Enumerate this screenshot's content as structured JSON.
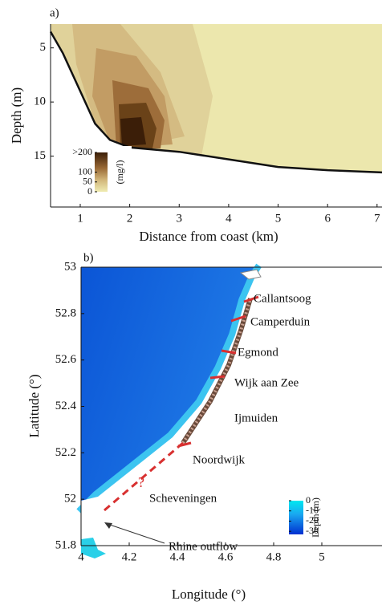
{
  "chart_data": [
    {
      "type": "contour",
      "panel_label": "a)",
      "xlabel": "Distance from coast (km)",
      "ylabel": "Depth (m)",
      "xlim": [
        0.4,
        7.1
      ],
      "xticks": [
        1,
        2,
        3,
        4,
        5,
        6,
        7
      ],
      "ylim": [
        2.8,
        19.7
      ],
      "yticks": [
        5,
        10,
        15
      ],
      "y_inverted": true,
      "series": [
        {
          "color": "#111111",
          "x": [
            0.4,
            0.65,
            1.0,
            1.3,
            1.6,
            2.0,
            3.0,
            4.0,
            5.0,
            6.0,
            7.1
          ],
          "values": [
            3.5,
            5.5,
            9,
            12,
            13.5,
            14.2,
            14.6,
            15.3,
            16,
            16.3,
            16.5
          ]
        }
      ],
      "colorbar": {
        "label": "(mg/l)",
        "clim": [
          0,
          200
        ],
        "ticks": [
          {
            "value": 200,
            "label": ">200"
          },
          100,
          50,
          0
        ]
      }
    },
    {
      "type": "map",
      "panel_label": "b)",
      "xlabel": "Longitude (°)",
      "ylabel": "Latitude (°)",
      "xlim": [
        4,
        5.25
      ],
      "xticks": [
        4,
        4.2,
        4.4,
        4.6,
        4.8,
        5
      ],
      "ylim": [
        51.8,
        53
      ],
      "yticks": [
        51.8,
        52,
        52.2,
        52.4,
        52.6,
        52.8,
        53
      ],
      "annotations": [
        "Callantsoog",
        "Camperduin",
        "Egmond",
        "Wijk aan Zee",
        "Ijmuiden",
        "Noordwijk",
        "Scheveningen",
        "Rhine outflow",
        "?"
      ],
      "colorbar": {
        "label": "Depth (m)",
        "clim": [
          -33,
          0
        ],
        "ticks": [
          0,
          -10,
          -20,
          -30
        ]
      }
    }
  ]
}
